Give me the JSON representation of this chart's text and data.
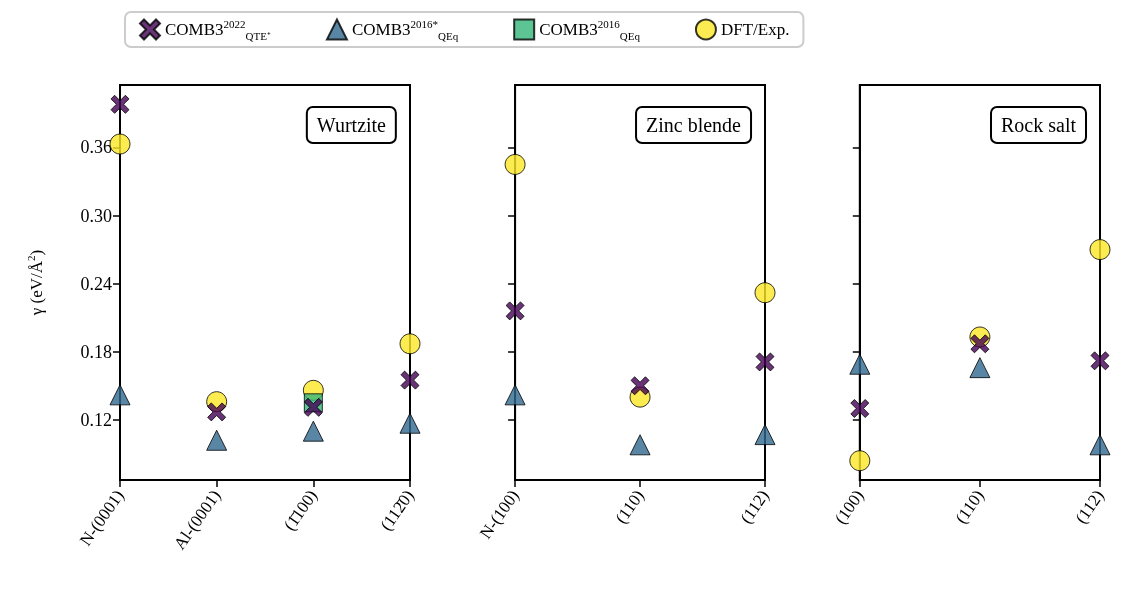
{
  "chart_data": [
    {
      "type": "scatter",
      "title": "Wurtzite",
      "ylabel": "γ (eV/Å$^{2}$)",
      "categories": [
        "N-(0001)",
        "Al-(0001)",
        "(1̄100)",
        "(112̄0)"
      ],
      "ylim": [
        0.067,
        0.415
      ],
      "yticks": [
        0.12,
        0.18,
        0.24,
        {
          "value": 0.3,
          "label": "0.30"
        },
        0.36
      ],
      "legend": "top",
      "series": [
        {
          "name": "COMB3$^{2022}$$_{QTE⁺}$",
          "color": "#440154",
          "marker": "cross",
          "values": [
            0.398,
            0.127,
            0.131,
            0.155
          ]
        },
        {
          "name": "COMB3$^{2016*}$$_{QEq}$",
          "color": "#31688e",
          "marker": "triangle",
          "values": [
            0.142,
            0.102,
            0.11,
            0.117
          ]
        },
        {
          "name": "COMB3$^{2016}$$_{QEq}$",
          "color": "#35b779",
          "marker": "square",
          "values": [
            null,
            null,
            0.135,
            null
          ]
        },
        {
          "name": "DFT/Exp.",
          "color": "#fde725",
          "marker": "circle",
          "values": [
            0.363,
            0.136,
            0.146,
            0.187
          ]
        }
      ]
    },
    {
      "type": "scatter",
      "title": "Zinc blende",
      "categories": [
        "N-(100)",
        "(110)",
        "(112)"
      ],
      "ylim": [
        0.067,
        0.415
      ],
      "yticks": [
        0.12,
        0.18,
        0.24,
        0.3,
        0.36
      ],
      "tick_labels": "x",
      "series": [
        {
          "name": "COMB3$^{2022}$$_{QTE⁺}$",
          "color": "#440154",
          "marker": "cross",
          "values": [
            0.216,
            0.15,
            0.171
          ]
        },
        {
          "name": "COMB3$^{2016*}$$_{QEq}$",
          "color": "#31688e",
          "marker": "triangle",
          "values": [
            0.142,
            0.098,
            0.107
          ]
        },
        {
          "name": "DFT/Exp.",
          "color": "#fde725",
          "marker": "circle",
          "values": [
            0.345,
            0.14,
            0.232
          ]
        }
      ]
    },
    {
      "type": "scatter",
      "title": "Rock salt",
      "categories": [
        "(100)",
        "(110)",
        "(112)"
      ],
      "ylim": [
        0.067,
        0.415
      ],
      "yticks": [
        0.12,
        0.18,
        0.24,
        0.3,
        0.36
      ],
      "tick_labels": "x",
      "series": [
        {
          "name": "COMB3$^{2022}$$_{QTE⁺}$",
          "color": "#440154",
          "marker": "cross",
          "values": [
            0.13,
            0.187,
            0.172
          ]
        },
        {
          "name": "COMB3$^{2016*}$$_{QEq}$",
          "color": "#31688e",
          "marker": "triangle",
          "values": [
            0.169,
            0.166,
            0.098
          ]
        },
        {
          "name": "DFT/Exp.",
          "color": "#fde725",
          "marker": "circle",
          "values": [
            0.084,
            0.193,
            0.27
          ]
        }
      ]
    }
  ]
}
